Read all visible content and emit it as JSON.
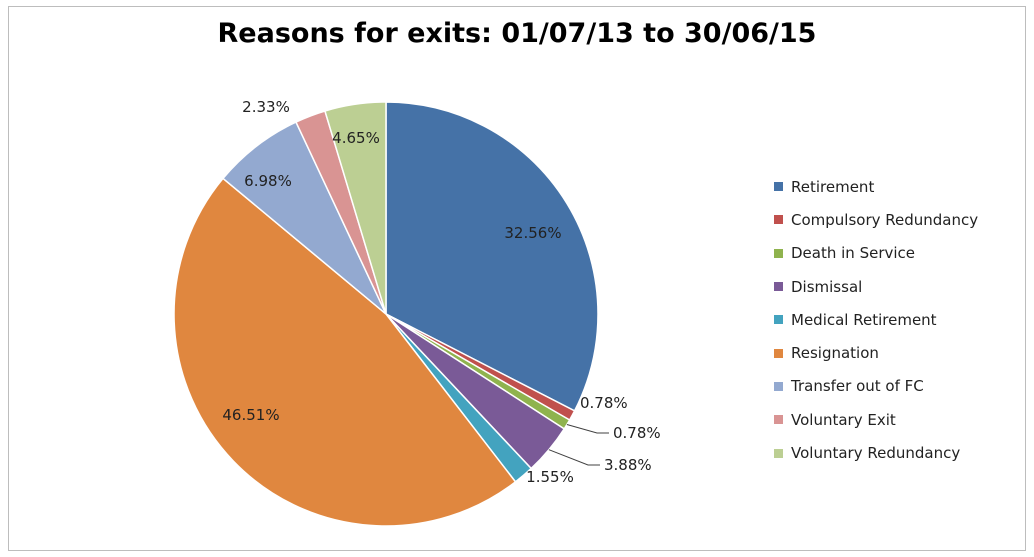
{
  "chart_data": {
    "type": "pie",
    "title": "Reasons for exits: 01/07/13 to 30/06/15",
    "categories": [
      "Retirement",
      "Compulsory Redundancy",
      "Death in Service",
      "Dismissal",
      "Medical Retirement",
      "Resignation",
      "Transfer out of FC",
      "Voluntary Exit",
      "Voluntary Redundancy"
    ],
    "values": [
      32.56,
      0.78,
      0.78,
      3.88,
      1.55,
      46.51,
      6.98,
      2.33,
      4.65
    ],
    "data_labels": [
      "32.56%",
      "0.78%",
      "0.78%",
      "3.88%",
      "1.55%",
      "46.51%",
      "6.98%",
      "2.33%",
      "4.65%"
    ],
    "colors": [
      "#4572a7",
      "#c0504d",
      "#8fb34e",
      "#7a5a97",
      "#43a3bf",
      "#e0873f",
      "#93a9d0",
      "#d99493",
      "#bccf93"
    ],
    "legend_position": "right",
    "start_angle": "12 o'clock",
    "direction": "clockwise"
  }
}
